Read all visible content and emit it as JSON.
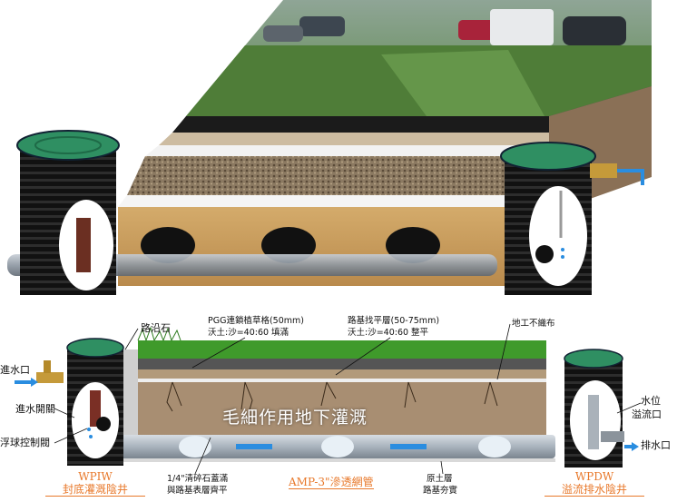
{
  "colors": {
    "accent_orange": "#e8782a",
    "water_blue": "#2a8de0",
    "grass_green": "#3f9a2b",
    "pipe_gray": "#9aa3ad",
    "well_black": "#1a1a1a",
    "lid_green": "#2f8f62",
    "sand": "#c89a5b"
  },
  "labels": {
    "curb_stone": "路沿石",
    "pgg_line1": "PGG連鎖植草格(50mm)",
    "pgg_line2": "沃土:沙=40:60 填滿",
    "leveling_line1": "路基找平層(50-75mm)",
    "leveling_line2": "沃土:沙=40:60 整平",
    "geotextile": "地工不織布",
    "water_inlet": "進水口",
    "inlet_valve": "進水開關",
    "float_valve": "浮球控制閥",
    "capillary_title": "毛細作用地下灌溉",
    "water_level_line1": "水位",
    "water_level_line2": "溢流口",
    "water_outlet": "排水口",
    "gravel_line1": "1/4\"清碎石蓋滿",
    "gravel_line2": "與路基表層齊平",
    "subgrade_line1": "原土層",
    "subgrade_line2": "路基夯實"
  },
  "captions": {
    "left_code": "WPIW",
    "left_name": "封底灌溉陰井",
    "pipe_name": "AMP-3\"滲透網管",
    "right_code": "WPDW",
    "right_name": "溢流排水陰井"
  },
  "icons": [
    "well-icon",
    "lid-icon",
    "valve-icon",
    "float-ball-icon",
    "faucet-icon",
    "drain-arrow-icon",
    "inlet-arrow-icon"
  ]
}
